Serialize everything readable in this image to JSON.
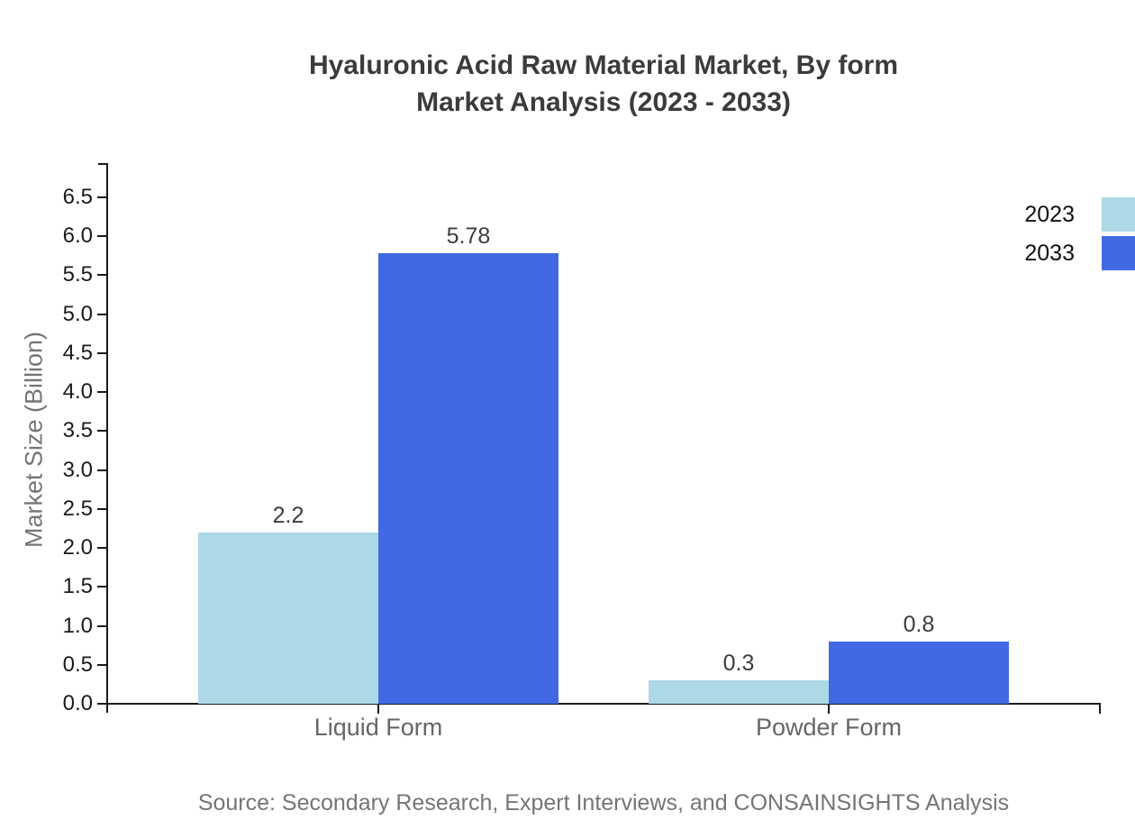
{
  "title": {
    "line1": "Hyaluronic Acid Raw Material Market, By form",
    "line2": "Market Analysis (2023 - 2033)"
  },
  "source": {
    "text": "Source: Secondary Research, Expert Interviews, and CONSAINSIGHTS Analysis"
  },
  "colors": {
    "series_2023": "#add8e6",
    "series_2033": "#4169e1",
    "axis": "#1a1a1a",
    "title_text": "#3b3b3b",
    "axis_title_text": "#757575",
    "category_text": "#666666",
    "value_label_text": "#3c3c3c",
    "tick_label_text": "#1a1a1a",
    "legend_text": "#111111"
  },
  "chart_data": {
    "type": "bar",
    "title": "Hyaluronic Acid Raw Material Market, By form Market Analysis (2023 - 2033)",
    "categories": [
      "Liquid Form",
      "Powder Form"
    ],
    "series": [
      {
        "name": "2023",
        "color": "#add8e6",
        "values": [
          2.2,
          0.3
        ]
      },
      {
        "name": "2033",
        "color": "#4169e1",
        "values": [
          5.78,
          0.8
        ]
      }
    ],
    "value_labels": [
      [
        "2.2",
        "0.3"
      ],
      [
        "5.78",
        "0.8"
      ]
    ],
    "xlabel": "",
    "ylabel": "Market Size (Billion)",
    "ylim": [
      0,
      6.94
    ],
    "yticks": [
      0.0,
      0.5,
      1.0,
      1.5,
      2.0,
      2.5,
      3.0,
      3.5,
      4.0,
      4.5,
      5.0,
      5.5,
      6.0,
      6.5
    ],
    "ytick_format_decimals": 1,
    "grid": false,
    "legend_position": "upper-right",
    "legend_entries": [
      "2023",
      "2033"
    ]
  }
}
